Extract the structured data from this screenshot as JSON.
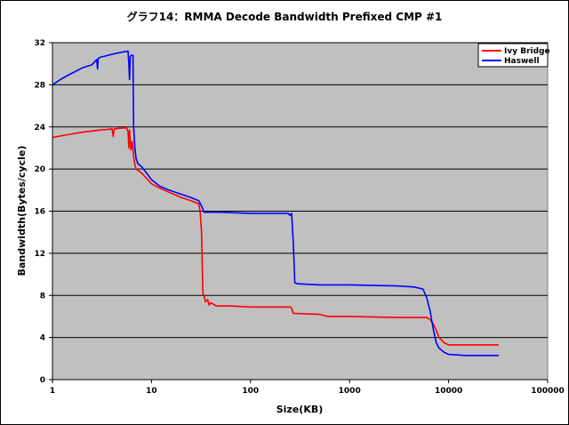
{
  "chart_data": {
    "type": "line",
    "title": "グラフ14：RMMA Decode Bandwidth Prefixed CMP #1",
    "xlabel": "Size(KB)",
    "ylabel": "Bandwidth(Bytes/cycle)",
    "x_scale": "log",
    "xlim": [
      1,
      100000
    ],
    "ylim": [
      0,
      32
    ],
    "x_ticks": [
      "1",
      "10",
      "100",
      "1000",
      "10000",
      "100000"
    ],
    "y_ticks": [
      "0",
      "4",
      "8",
      "12",
      "16",
      "20",
      "24",
      "28",
      "32"
    ],
    "grid": "horizontal",
    "legend": "top-right",
    "colors": {
      "plot_bg": "#c0c0c0",
      "grid": "#000000"
    },
    "series": [
      {
        "name": "Ivy Bridge",
        "color": "#ff0000",
        "points": [
          [
            1,
            23.0
          ],
          [
            1.5,
            23.3
          ],
          [
            2,
            23.5
          ],
          [
            3,
            23.7
          ],
          [
            4,
            23.8
          ],
          [
            4.1,
            23.1
          ],
          [
            4.2,
            23.8
          ],
          [
            5,
            23.9
          ],
          [
            5.6,
            23.9
          ],
          [
            5.8,
            23.6
          ],
          [
            5.9,
            22.0
          ],
          [
            6.0,
            23.7
          ],
          [
            6.2,
            21.8
          ],
          [
            6.4,
            22.6
          ],
          [
            6.6,
            21.2
          ],
          [
            6.8,
            20.4
          ],
          [
            7,
            20.0
          ],
          [
            8,
            19.6
          ],
          [
            10,
            18.6
          ],
          [
            12,
            18.2
          ],
          [
            15,
            17.8
          ],
          [
            20,
            17.3
          ],
          [
            25,
            17.0
          ],
          [
            30,
            16.7
          ],
          [
            31,
            16.0
          ],
          [
            32,
            14.0
          ],
          [
            33,
            8.2
          ],
          [
            34,
            8.0
          ],
          [
            35,
            7.4
          ],
          [
            37,
            7.6
          ],
          [
            38,
            7.1
          ],
          [
            40,
            7.3
          ],
          [
            45,
            7.0
          ],
          [
            60,
            7.0
          ],
          [
            100,
            6.9
          ],
          [
            200,
            6.9
          ],
          [
            250,
            6.9
          ],
          [
            260,
            6.8
          ],
          [
            270,
            6.3
          ],
          [
            500,
            6.2
          ],
          [
            600,
            6.0
          ],
          [
            1000,
            6.0
          ],
          [
            3000,
            5.9
          ],
          [
            6000,
            5.9
          ],
          [
            6500,
            5.7
          ],
          [
            7000,
            5.3
          ],
          [
            7500,
            4.7
          ],
          [
            8000,
            4.0
          ],
          [
            9000,
            3.5
          ],
          [
            10000,
            3.3
          ],
          [
            20000,
            3.3
          ],
          [
            32000,
            3.3
          ]
        ]
      },
      {
        "name": "Haswell",
        "color": "#0000ff",
        "points": [
          [
            1,
            28.0
          ],
          [
            1.2,
            28.5
          ],
          [
            1.5,
            29.0
          ],
          [
            2,
            29.6
          ],
          [
            2.5,
            29.9
          ],
          [
            2.8,
            30.4
          ],
          [
            2.85,
            29.5
          ],
          [
            2.9,
            30.5
          ],
          [
            3,
            30.6
          ],
          [
            4,
            30.9
          ],
          [
            5,
            31.1
          ],
          [
            5.8,
            31.2
          ],
          [
            5.9,
            30.0
          ],
          [
            6.0,
            28.5
          ],
          [
            6.1,
            30.7
          ],
          [
            6.3,
            30.8
          ],
          [
            6.5,
            30.8
          ],
          [
            6.6,
            24.0
          ],
          [
            6.8,
            22.0
          ],
          [
            7,
            21.0
          ],
          [
            7.3,
            20.5
          ],
          [
            8,
            20.2
          ],
          [
            10,
            19.0
          ],
          [
            12,
            18.4
          ],
          [
            15,
            18.0
          ],
          [
            20,
            17.6
          ],
          [
            25,
            17.3
          ],
          [
            30,
            17.0
          ],
          [
            32,
            16.5
          ],
          [
            34,
            15.9
          ],
          [
            50,
            15.9
          ],
          [
            100,
            15.8
          ],
          [
            200,
            15.8
          ],
          [
            240,
            15.8
          ],
          [
            250,
            15.6
          ],
          [
            260,
            15.8
          ],
          [
            270,
            13.0
          ],
          [
            280,
            9.2
          ],
          [
            300,
            9.1
          ],
          [
            500,
            9.0
          ],
          [
            1000,
            9.0
          ],
          [
            3000,
            8.9
          ],
          [
            4500,
            8.8
          ],
          [
            5500,
            8.6
          ],
          [
            6000,
            7.8
          ],
          [
            6500,
            6.5
          ],
          [
            7000,
            4.8
          ],
          [
            7500,
            3.5
          ],
          [
            8000,
            3.0
          ],
          [
            9000,
            2.6
          ],
          [
            10000,
            2.4
          ],
          [
            15000,
            2.3
          ],
          [
            32000,
            2.3
          ]
        ]
      }
    ]
  }
}
